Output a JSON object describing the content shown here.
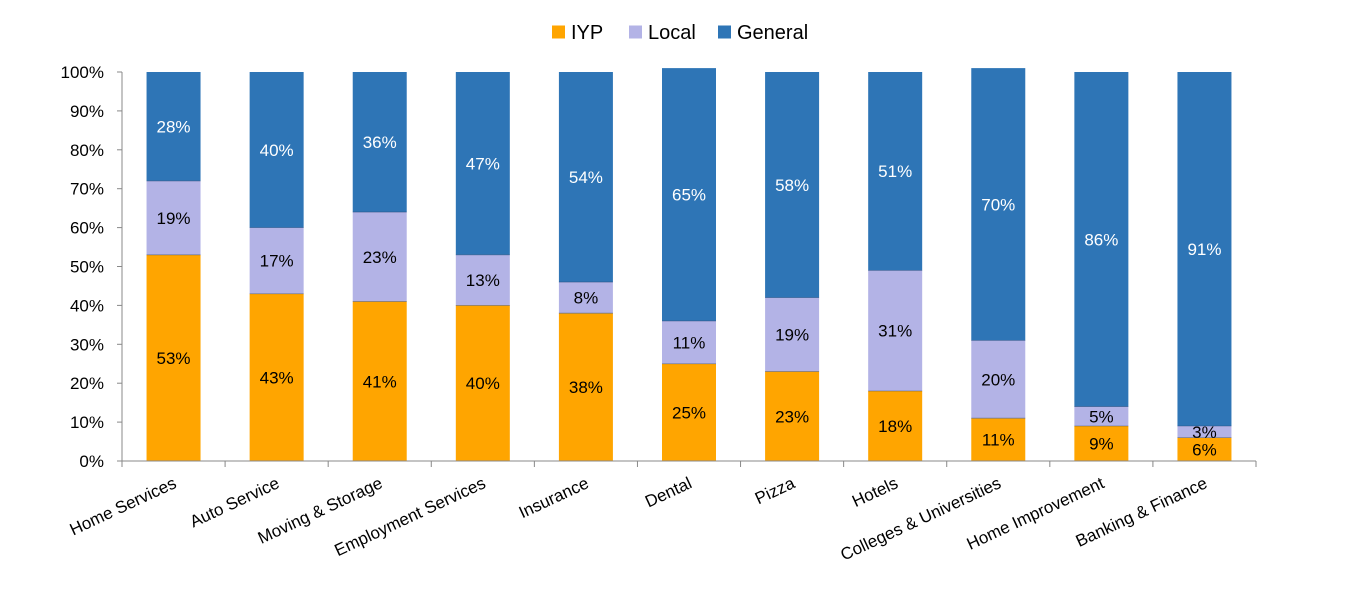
{
  "chart_data": {
    "type": "bar",
    "stacked": true,
    "percent_stacked": true,
    "title": "",
    "xlabel": "",
    "ylabel": "",
    "ylim": [
      0,
      100
    ],
    "y_ticks": [
      "0%",
      "10%",
      "20%",
      "30%",
      "40%",
      "50%",
      "60%",
      "70%",
      "80%",
      "90%",
      "100%"
    ],
    "grid": false,
    "legend_position": "top",
    "categories": [
      "Home Services",
      "Auto Service",
      "Moving & Storage",
      "Employment Services",
      "Insurance",
      "Dental",
      "Pizza",
      "Hotels",
      "Colleges & Universities",
      "Home Improvement",
      "Banking & Finance"
    ],
    "series": [
      {
        "name": "IYP",
        "color": "#FFA500",
        "label_color": "#000000",
        "values": [
          53,
          43,
          41,
          40,
          38,
          25,
          23,
          18,
          11,
          9,
          6
        ],
        "labels": [
          "53%",
          "43%",
          "41%",
          "40%",
          "38%",
          "25%",
          "23%",
          "18%",
          "11%",
          "9%",
          "6%"
        ]
      },
      {
        "name": "Local",
        "color": "#B3B3E6",
        "label_color": "#000000",
        "values": [
          19,
          17,
          23,
          13,
          8,
          11,
          19,
          31,
          20,
          5,
          3
        ],
        "labels": [
          "19%",
          "17%",
          "23%",
          "13%",
          "8%",
          "11%",
          "19%",
          "31%",
          "20%",
          "5%",
          "3%"
        ]
      },
      {
        "name": "General",
        "color": "#2E75B6",
        "label_color": "#FFFFFF",
        "values": [
          28,
          40,
          36,
          47,
          54,
          65,
          58,
          51,
          70,
          86,
          91
        ],
        "labels": [
          "28%",
          "40%",
          "36%",
          "47%",
          "54%",
          "65%",
          "58%",
          "51%",
          "70%",
          "86%",
          "91%"
        ]
      }
    ]
  }
}
